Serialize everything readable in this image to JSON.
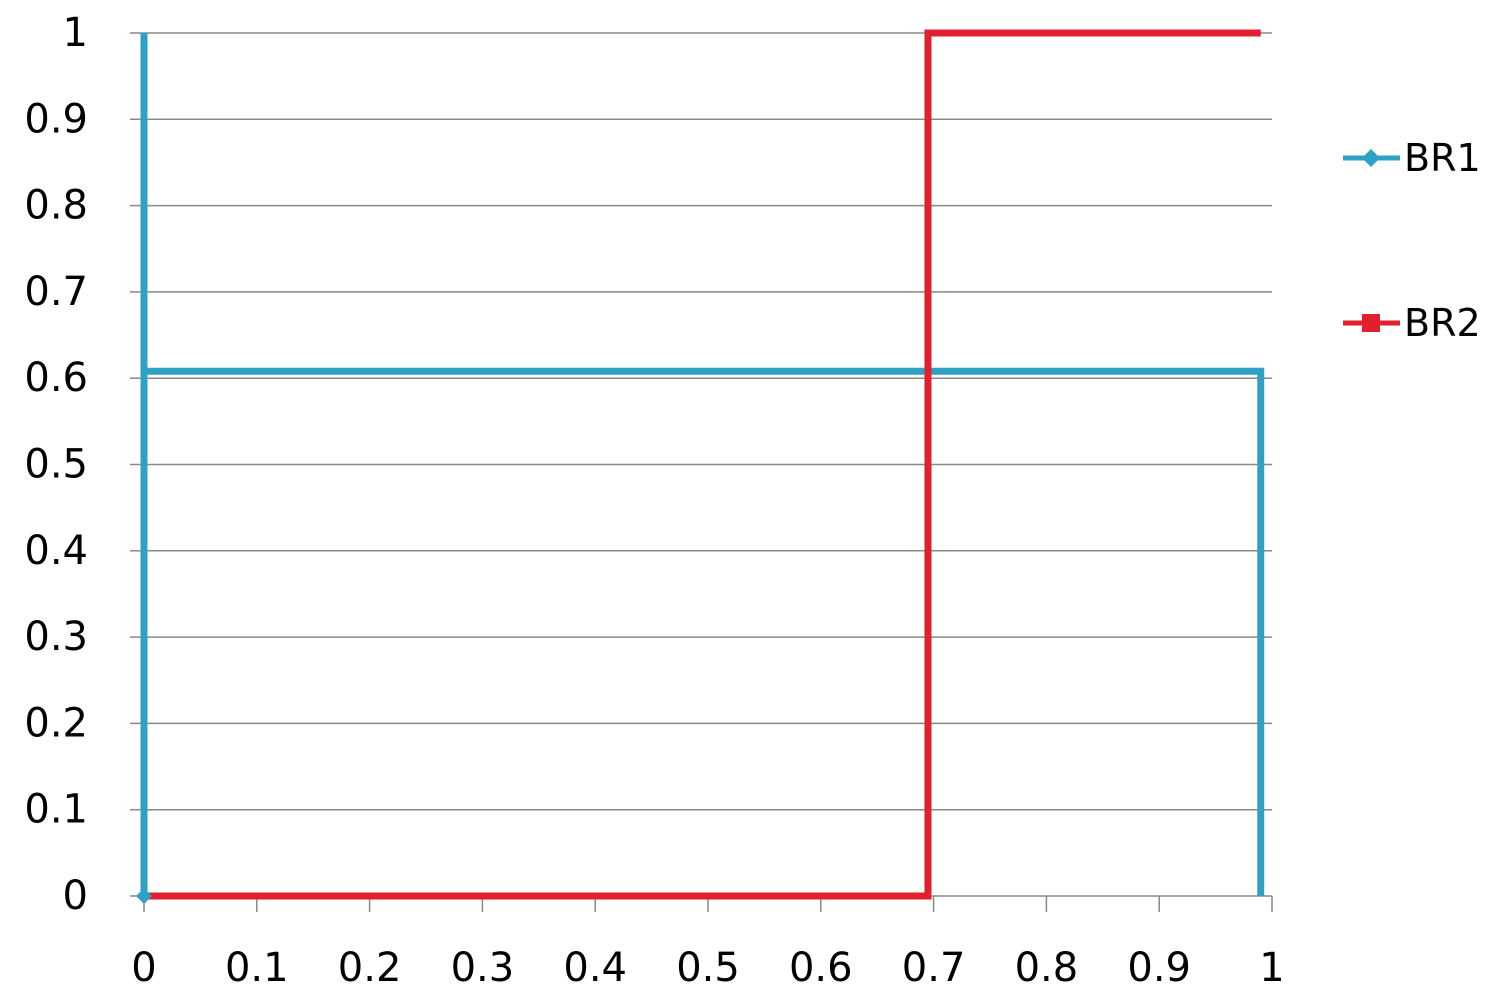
{
  "chart_data": {
    "type": "line",
    "title": "",
    "xlabel": "",
    "ylabel": "",
    "xlim": [
      0,
      1
    ],
    "ylim": [
      0,
      1
    ],
    "x_ticks": [
      "0",
      "0.1",
      "0.2",
      "0.3",
      "0.4",
      "0.5",
      "0.6",
      "0.7",
      "0.8",
      "0.9",
      "1"
    ],
    "y_ticks": [
      "0",
      "0.1",
      "0.2",
      "0.3",
      "0.4",
      "0.5",
      "0.6",
      "0.7",
      "0.8",
      "0.9",
      "1"
    ],
    "grid": "horizontal",
    "legend": "right",
    "series": [
      {
        "name": "BR1",
        "color": "#2EA2C4",
        "marker": "diamond",
        "points": [
          [
            0,
            0
          ],
          [
            0,
            1
          ],
          [
            0,
            0.608
          ],
          [
            0.99,
            0.608
          ],
          [
            0.99,
            0
          ]
        ]
      },
      {
        "name": "BR2",
        "color": "#E0202E",
        "marker": "square",
        "points": [
          [
            0,
            0
          ],
          [
            0.695,
            0
          ],
          [
            0.695,
            1
          ],
          [
            0.99,
            1
          ]
        ]
      }
    ]
  }
}
